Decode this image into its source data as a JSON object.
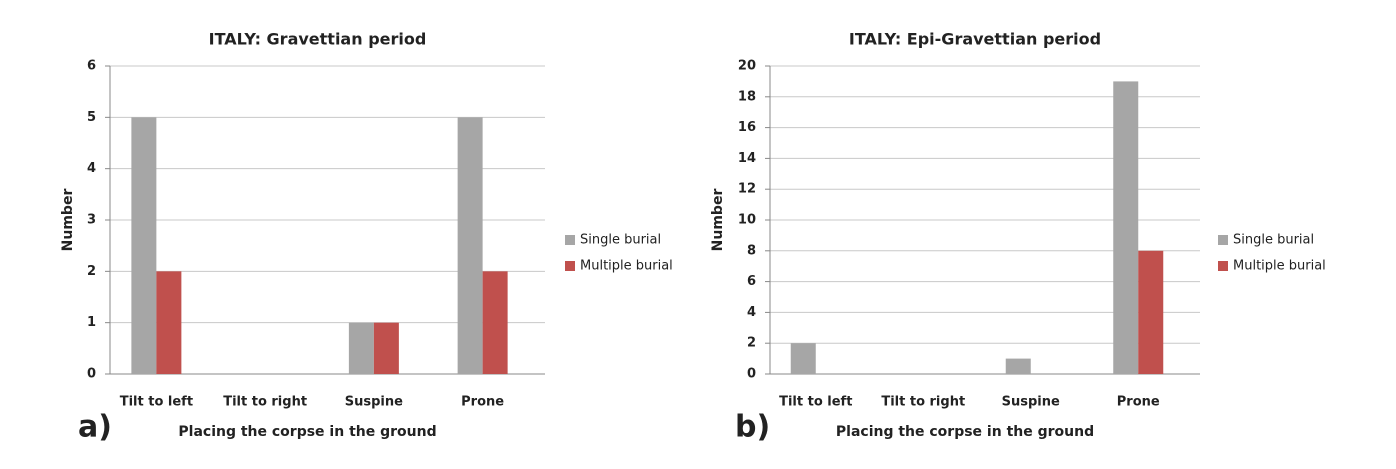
{
  "chart_data": [
    {
      "type": "bar",
      "title": "ITALY: Gravettian period",
      "panel_label": "a)",
      "x_label": "Placing the corpse in the ground",
      "y_label": "Number",
      "categories": [
        "Tilt to left",
        "Tilt to right",
        "Suspine",
        "Prone"
      ],
      "series": [
        {
          "name": "Single burial",
          "color": "#a6a6a6",
          "values": [
            5,
            0,
            1,
            5
          ]
        },
        {
          "name": "Multiple burial",
          "color": "#c0504d",
          "values": [
            2,
            0,
            1,
            2
          ]
        }
      ],
      "ylim": [
        0,
        6
      ],
      "yticks": [
        0,
        1,
        2,
        3,
        4,
        5,
        6
      ],
      "grid": true,
      "legend": "right"
    },
    {
      "type": "bar",
      "title": "ITALY: Epi-Gravettian period",
      "panel_label": "b)",
      "x_label": "Placing the corpse in the ground",
      "y_label": "Number",
      "categories": [
        "Tilt to left",
        "Tilt to right",
        "Suspine",
        "Prone"
      ],
      "series": [
        {
          "name": "Single burial",
          "color": "#a6a6a6",
          "values": [
            2,
            0,
            1,
            19
          ]
        },
        {
          "name": "Multiple burial",
          "color": "#c0504d",
          "values": [
            0,
            0,
            0,
            8
          ]
        }
      ],
      "ylim": [
        0,
        20
      ],
      "yticks": [
        0,
        2,
        4,
        6,
        8,
        10,
        12,
        14,
        16,
        18,
        20
      ],
      "grid": true,
      "legend": "right"
    }
  ]
}
